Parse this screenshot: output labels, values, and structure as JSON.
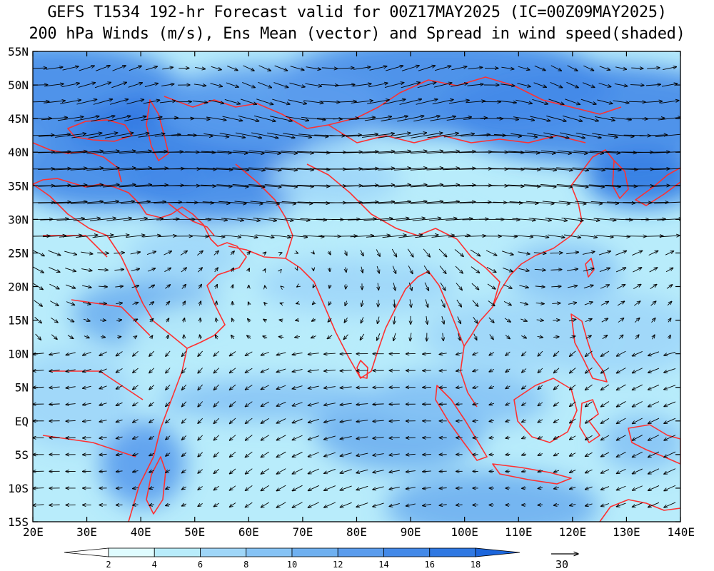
{
  "title": {
    "line1": "GEFS T1534 192-hr Forecast valid for 00Z17MAY2025 (IC=00Z09MAY2025)",
    "line2": "200 hPa Winds (m/s), Ens Mean (vector) and Spread in wind speed(shaded)"
  },
  "map": {
    "lon_range": [
      20,
      140
    ],
    "lat_range": [
      -15,
      55
    ],
    "lon_ticks": [
      {
        "value": 20,
        "label": "20E"
      },
      {
        "value": 30,
        "label": "30E"
      },
      {
        "value": 40,
        "label": "40E"
      },
      {
        "value": 50,
        "label": "50E"
      },
      {
        "value": 60,
        "label": "60E"
      },
      {
        "value": 70,
        "label": "70E"
      },
      {
        "value": 80,
        "label": "80E"
      },
      {
        "value": 90,
        "label": "90E"
      },
      {
        "value": 100,
        "label": "100E"
      },
      {
        "value": 110,
        "label": "110E"
      },
      {
        "value": 120,
        "label": "120E"
      },
      {
        "value": 130,
        "label": "130E"
      },
      {
        "value": 140,
        "label": "140E"
      }
    ],
    "lat_ticks": [
      {
        "value": 55,
        "label": "55N"
      },
      {
        "value": 50,
        "label": "50N"
      },
      {
        "value": 45,
        "label": "45N"
      },
      {
        "value": 40,
        "label": "40N"
      },
      {
        "value": 35,
        "label": "35N"
      },
      {
        "value": 30,
        "label": "30N"
      },
      {
        "value": 25,
        "label": "25N"
      },
      {
        "value": 20,
        "label": "20N"
      },
      {
        "value": 15,
        "label": "15N"
      },
      {
        "value": 10,
        "label": "10N"
      },
      {
        "value": 5,
        "label": "5N"
      },
      {
        "value": 0,
        "label": "EQ"
      },
      {
        "value": -5,
        "label": "5S"
      },
      {
        "value": -10,
        "label": "10S"
      },
      {
        "value": -15,
        "label": "15S"
      }
    ],
    "coastline_color": "#ff3030"
  },
  "colorbar": {
    "levels": [
      "2",
      "4",
      "6",
      "8",
      "10",
      "12",
      "14",
      "16",
      "18"
    ],
    "colors": [
      "#ffffff",
      "#dffcff",
      "#b8ecfb",
      "#9fd6f8",
      "#86c3f5",
      "#6fb0f0",
      "#5a9ced",
      "#4389e8",
      "#2f78e2",
      "#1c66dc"
    ]
  },
  "reference_vector": {
    "label": "30"
  }
}
